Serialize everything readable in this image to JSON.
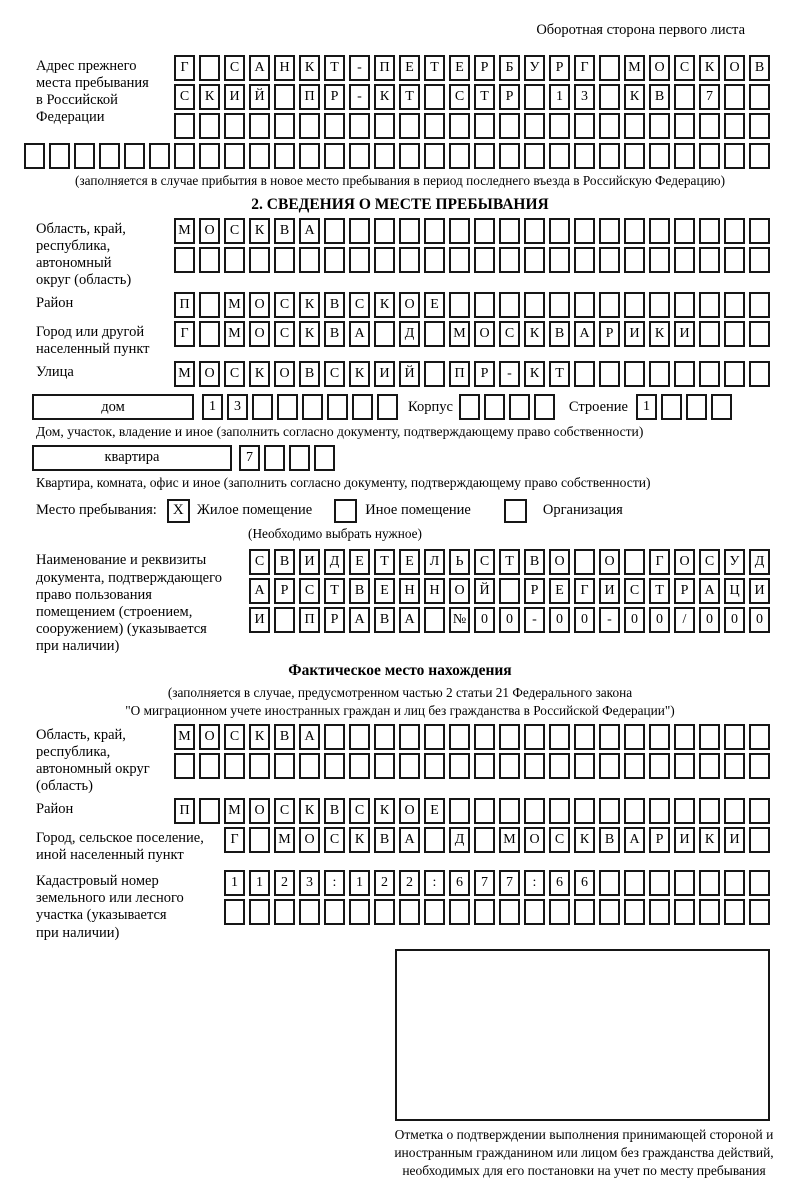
{
  "page": {
    "side_note": "Оборотная сторона первого листа"
  },
  "prev_address": {
    "label": "Адрес прежнего\nместа пребывания\nв Российской\nФедерации",
    "rows": [
      "Г САНКТ-ПЕТЕРБУРГ МОСКОВ",
      "СКИЙ ПР-КТ СТР 13 КВ 7  ",
      "                        "
    ],
    "extra_row": "                              ",
    "note": "(заполняется в случае прибытия в новое место пребывания в период последнего въезда в Российскую Федерацию)"
  },
  "section2": {
    "title": "2. СВЕДЕНИЯ О МЕСТЕ ПРЕБЫВАНИЯ",
    "region": {
      "label": "Область, край,\nреспублика,\nавтономный\nокруг (область)",
      "rows": [
        "МОСКВА                  ",
        "                        "
      ]
    },
    "district": {
      "label": "Район",
      "row": "П МОСКВСКОЕ             "
    },
    "city": {
      "label": "Город или другой\nнаселенный пункт",
      "row": "Г МОСКВА Д МОСКВАРИКИ   "
    },
    "street": {
      "label": "Улица",
      "row": "МОСКОВСКИЙ ПР-КТ        "
    },
    "house": {
      "box_label": "дом",
      "cells": "13      ",
      "korpus_label": "Корпус",
      "korpus_cells": "    ",
      "stroenie_label": "Строение",
      "stroenie_cells": "1   "
    },
    "house_note": "Дом, участок, владение и иное (заполнить согласно документу, подтверждающему право собственности)",
    "apartment": {
      "box_label": "квартира",
      "cells": "7   "
    },
    "apartment_note": "Квартира, комната, офис и иное (заполнить согласно документу, подтверждающему право собственности)",
    "stay_type": {
      "label": "Место пребывания:",
      "options": [
        {
          "checked": "X",
          "label": "Жилое помещение"
        },
        {
          "checked": "",
          "label": "Иное помещение"
        },
        {
          "checked": "",
          "label": "Организация"
        }
      ],
      "note": "(Необходимо выбрать нужное)"
    },
    "document": {
      "label": "Наименование и реквизиты\nдокумента, подтверждающего\nправо пользования\nпомещением (строением,\nсооружением) (указывается\nпри наличии)",
      "rows": [
        "СВИДЕТЕЛЬСТВО О ГОСУД",
        "АРСТВЕННОЙ РЕГИСТРАЦИ",
        "И ПРАВА №00-00-00/000"
      ]
    }
  },
  "actual_location": {
    "title": "Фактическое место нахождения",
    "note_line1": "(заполняется в случае, предусмотренном частью 2 статьи 21 Федерального закона",
    "note_line2": "\"О миграционном учете иностранных граждан и лиц без гражданства в Российской Федерации\")",
    "region": {
      "label": "Область, край,\nреспублика,\nавтономный округ\n(область)",
      "rows": [
        "МОСКВА                  ",
        "                        "
      ]
    },
    "district": {
      "label": "Район",
      "row": "П МОСКВСКОЕ             "
    },
    "city": {
      "label": "Город, сельское поселение,\nиной населенный пункт",
      "row": "Г МОСКВА Д МОСКВАРИКИ "
    },
    "cadastral": {
      "label": "Кадастровый номер\nземельного или лесного\nучастка (указывается\nпри наличии)",
      "rows": [
        "1123:122:677:66       ",
        "                      "
      ]
    },
    "stamp_note": "Отметка о подтверждении выполнения принимающей стороной и иностранным гражданином или лицом без гражданства действий, необходимых для его постановки на учет по месту пребывания"
  }
}
